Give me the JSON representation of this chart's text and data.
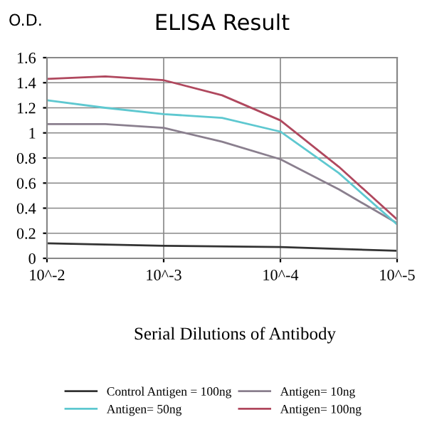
{
  "chart_data": {
    "type": "line",
    "title": "ELISA Result",
    "ylabel": "O.D.",
    "xlabel": "Serial Dilutions of Antibody",
    "log": "x",
    "xlim": [
      0.01,
      1e-05
    ],
    "xticks": [
      {
        "value": 0.01,
        "label": "10^-2"
      },
      {
        "value": 0.001,
        "label": "10^-3"
      },
      {
        "value": 0.0001,
        "label": "10^-4"
      },
      {
        "value": 1e-05,
        "label": "10^-5"
      }
    ],
    "ylim": [
      0,
      1.6
    ],
    "yticks": [
      0,
      0.2,
      0.4,
      0.6,
      0.8,
      1,
      1.2,
      1.4,
      1.6
    ],
    "grid": true,
    "legend": "bottom",
    "marker": "none",
    "line_style": "solid",
    "series": [
      {
        "name": "Control Antigen = 100ng",
        "color": "#333333",
        "x": [
          0.01,
          0.001,
          0.0001,
          1e-05
        ],
        "values": [
          0.12,
          0.1,
          0.09,
          0.06
        ]
      },
      {
        "name": "Antigen= 10ng",
        "color": "#8a7f8e",
        "x": [
          0.01,
          0.00316,
          0.001,
          0.000316,
          0.0001,
          3.16e-05,
          1e-05
        ],
        "values": [
          1.07,
          1.07,
          1.04,
          0.93,
          0.79,
          0.55,
          0.28
        ]
      },
      {
        "name": "Antigen= 50ng",
        "color": "#5ec8d0",
        "x": [
          0.01,
          0.00316,
          0.001,
          0.000316,
          0.0001,
          3.16e-05,
          1e-05
        ],
        "values": [
          1.26,
          1.2,
          1.15,
          1.12,
          1.01,
          0.68,
          0.27
        ]
      },
      {
        "name": "Antigen= 100ng",
        "color": "#b0485e",
        "x": [
          0.01,
          0.00316,
          0.001,
          0.000316,
          0.0001,
          3.16e-05,
          1e-05
        ],
        "values": [
          1.43,
          1.45,
          1.42,
          1.3,
          1.1,
          0.73,
          0.31
        ]
      }
    ]
  }
}
